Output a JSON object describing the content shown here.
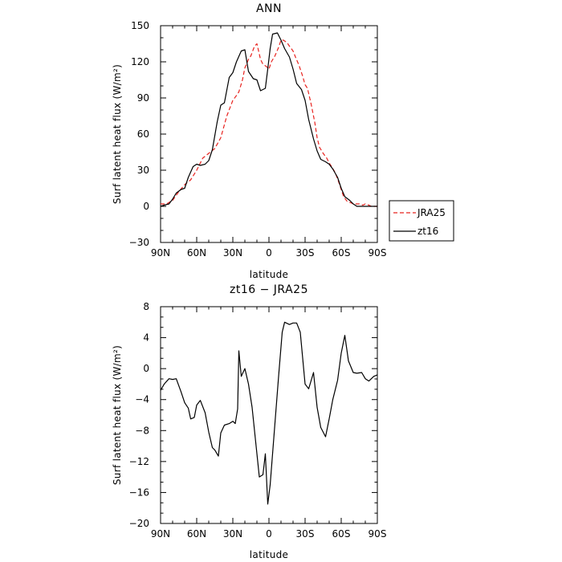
{
  "chart_data": [
    {
      "type": "line",
      "title": "ANN",
      "xlabel": "latitude",
      "ylabel": "Surf latent heat flux (W/m²)",
      "xlim": [
        -90,
        90
      ],
      "ylim": [
        -30,
        150
      ],
      "x_ticks": [
        -90,
        -60,
        -30,
        0,
        30,
        60,
        90
      ],
      "x_tick_labels": [
        "90N",
        "60N",
        "30N",
        "0",
        "30S",
        "60S",
        "90S"
      ],
      "y_ticks": [
        -30,
        0,
        30,
        60,
        90,
        120,
        150
      ],
      "y_tick_labels": [
        "−30",
        "0",
        "30",
        "60",
        "90",
        "120",
        "150"
      ],
      "legend_position": "outside-right",
      "series": [
        {
          "name": "JRA25",
          "color": "#e8231f",
          "style": "dashed",
          "x": [
            -90,
            -85,
            -80,
            -75,
            -70,
            -65,
            -60,
            -55,
            -50,
            -45,
            -40,
            -35,
            -30,
            -27,
            -25,
            -22,
            -20,
            -17,
            -15,
            -12,
            -10,
            -7,
            -5,
            -2,
            0,
            2,
            5,
            8,
            10,
            12,
            15,
            17,
            20,
            22,
            25,
            28,
            30,
            32,
            35,
            38,
            40,
            42,
            45,
            48,
            50,
            52,
            55,
            58,
            60,
            62,
            65,
            68,
            70,
            73,
            75,
            78,
            80,
            83,
            85,
            88,
            90
          ],
          "y": [
            2,
            2,
            5,
            12,
            18,
            22,
            30,
            40,
            44,
            48,
            57,
            75,
            88,
            92,
            95,
            105,
            115,
            122,
            125,
            133,
            135,
            122,
            118,
            116,
            114,
            120,
            125,
            132,
            138,
            138,
            136,
            133,
            129,
            124,
            117,
            108,
            101,
            98,
            85,
            70,
            57,
            49,
            44,
            40,
            36,
            33,
            28,
            20,
            14,
            8,
            4,
            3,
            2,
            2,
            2,
            1,
            2,
            1,
            0,
            0,
            0
          ]
        },
        {
          "name": "zt16",
          "color": "#000000",
          "style": "solid",
          "x": [
            -90,
            -87,
            -83,
            -80,
            -77,
            -73,
            -70,
            -67,
            -63,
            -60,
            -57,
            -53,
            -50,
            -47,
            -43,
            -40,
            -37,
            -33,
            -30,
            -27,
            -23,
            -20,
            -17,
            -13,
            -10,
            -7,
            -3,
            -1,
            1,
            3,
            7,
            10,
            13,
            17,
            20,
            23,
            27,
            30,
            33,
            37,
            40,
            43,
            47,
            50,
            53,
            57,
            60,
            63,
            67,
            70,
            73,
            77,
            80,
            83,
            87,
            90
          ],
          "y": [
            0,
            1,
            2,
            6,
            11,
            14,
            15,
            24,
            33,
            35,
            34,
            35,
            38,
            47,
            70,
            84,
            86,
            107,
            111,
            120,
            129,
            130,
            112,
            106,
            105,
            96,
            98,
            114,
            131,
            143,
            144,
            138,
            131,
            124,
            114,
            102,
            97,
            88,
            72,
            56,
            46,
            39,
            37,
            35,
            31,
            24,
            15,
            8,
            5,
            2,
            0,
            0,
            0,
            0,
            0,
            0
          ]
        }
      ]
    },
    {
      "type": "line",
      "title": "zt16 − JRA25",
      "xlabel": "latitude",
      "ylabel": "Surf latent heat flux (W/m²)",
      "xlim": [
        -90,
        90
      ],
      "ylim": [
        -20,
        8
      ],
      "x_ticks": [
        -90,
        -60,
        -30,
        0,
        30,
        60,
        90
      ],
      "x_tick_labels": [
        "90N",
        "60N",
        "30N",
        "0",
        "30S",
        "60S",
        "90S"
      ],
      "y_ticks": [
        -20,
        -16,
        -12,
        -8,
        -4,
        0,
        4,
        8
      ],
      "y_tick_labels": [
        "−20",
        "−16",
        "−12",
        "−8",
        "−4",
        "0",
        "4",
        "8"
      ],
      "series": [
        {
          "name": "zt16 − JRA25",
          "color": "#000000",
          "style": "solid",
          "x": [
            -90,
            -87,
            -83,
            -80,
            -77,
            -73,
            -70,
            -67,
            -65,
            -62,
            -60,
            -57,
            -53,
            -50,
            -47,
            -45,
            -42,
            -40,
            -37,
            -33,
            -30,
            -28,
            -26,
            -25,
            -23,
            -20,
            -17,
            -14,
            -12,
            -10,
            -8,
            -5,
            -3,
            -1,
            1,
            4,
            8,
            11,
            13,
            17,
            20,
            23,
            26,
            30,
            33,
            37,
            40,
            43,
            47,
            50,
            53,
            57,
            60,
            63,
            66,
            70,
            73,
            77,
            80,
            83,
            87,
            90
          ],
          "y": [
            -2.8,
            -2,
            -1.3,
            -1.4,
            -1.3,
            -3,
            -4.4,
            -5.1,
            -6.5,
            -6.3,
            -4.7,
            -4.1,
            -5.7,
            -8.2,
            -10.2,
            -10.5,
            -11.3,
            -8.3,
            -7.3,
            -7.1,
            -6.8,
            -7.1,
            -5.2,
            2.3,
            -1,
            0,
            -2,
            -5,
            -8,
            -11,
            -14,
            -13.7,
            -11,
            -17.5,
            -15,
            -9,
            -1,
            4.7,
            6,
            5.7,
            5.9,
            5.9,
            4.7,
            -2,
            -2.6,
            -0.5,
            -5,
            -7.6,
            -8.8,
            -6.5,
            -4,
            -1.5,
            2,
            4.3,
            1,
            -0.5,
            -0.6,
            -0.5,
            -1.3,
            -1.6,
            -1,
            -0.8
          ]
        }
      ]
    }
  ]
}
